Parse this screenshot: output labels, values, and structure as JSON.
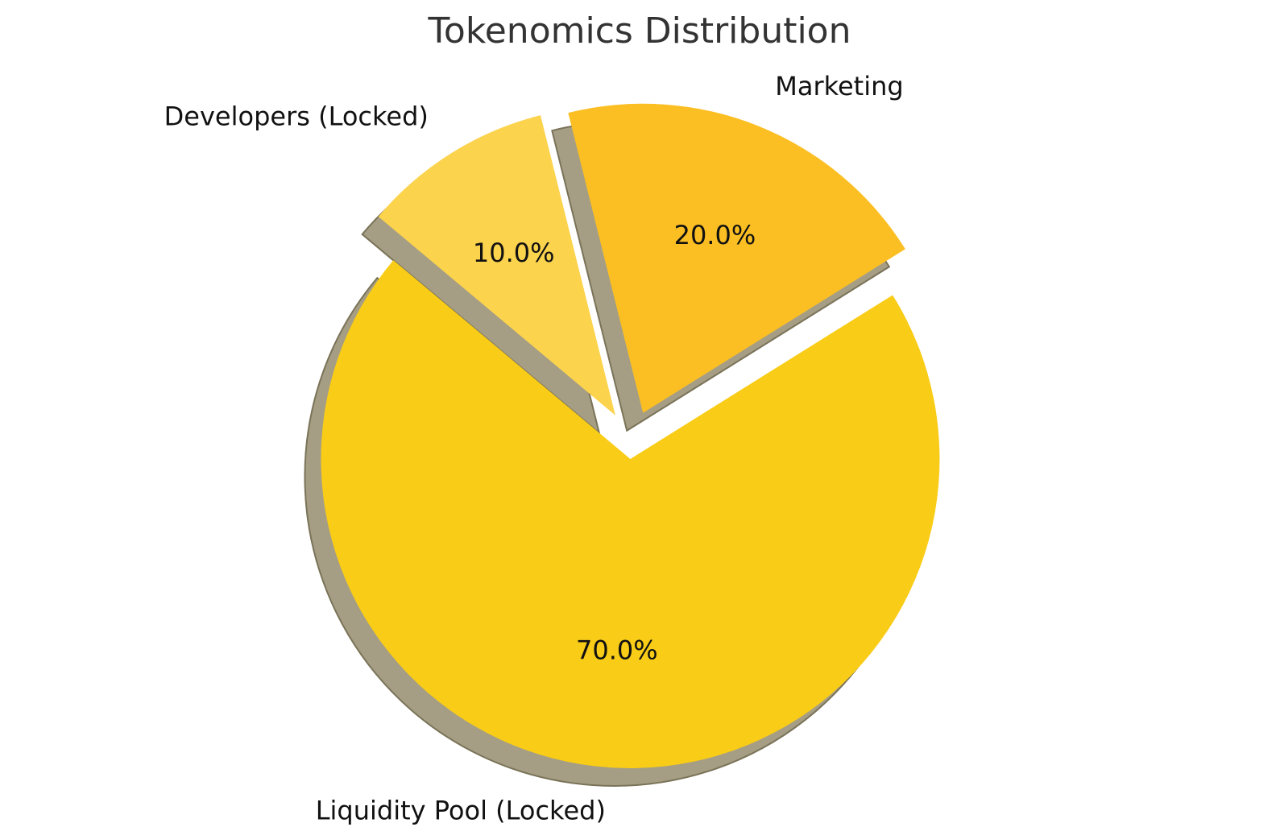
{
  "chart_data": {
    "type": "pie",
    "title": "Tokenomics Distribution",
    "slices": [
      {
        "label": "Liquidity Pool (Locked)",
        "value": 70,
        "percent_label": "70.0%",
        "color": "#f9cc17",
        "exploded": true
      },
      {
        "label": "Marketing",
        "value": 20,
        "percent_label": "20.0%",
        "color": "#fbbf24",
        "exploded": true
      },
      {
        "label": "Developers (Locked)",
        "value": 10,
        "percent_label": "10.0%",
        "color": "#fcd34d",
        "exploded": true
      }
    ],
    "start_angle_deg": 140,
    "shadow": true,
    "shadow_color": "#a59e85",
    "legend": "none"
  }
}
